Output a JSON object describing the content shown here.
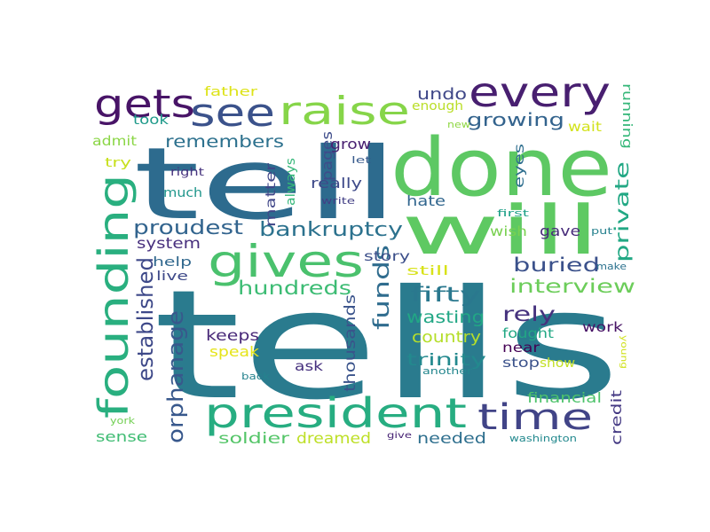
{
  "words": [
    {
      "text": "tells",
      "color": "#2a7b8e"
    },
    {
      "text": "tell",
      "color": "#2d6b8e"
    },
    {
      "text": "done",
      "color": "#5dc863"
    },
    {
      "text": "will",
      "color": "#5ec962"
    },
    {
      "text": "president",
      "color": "#27ad81"
    },
    {
      "text": "founding",
      "color": "#29af7f"
    },
    {
      "text": "gives",
      "color": "#4ac16d"
    },
    {
      "text": "raise",
      "color": "#86d549"
    },
    {
      "text": "every",
      "color": "#481f70"
    },
    {
      "text": "see",
      "color": "#3b528b"
    },
    {
      "text": "gets",
      "color": "#481467"
    },
    {
      "text": "time",
      "color": "#414487"
    },
    {
      "text": "orphanage",
      "color": "#38588c"
    },
    {
      "text": "established",
      "color": "#3e4989"
    },
    {
      "text": "bankruptcy",
      "color": "#2c728e"
    },
    {
      "text": "proudest",
      "color": "#32648e"
    },
    {
      "text": "hundreds",
      "color": "#3dbc74"
    },
    {
      "text": "interview",
      "color": "#6ccd5a"
    },
    {
      "text": "buried",
      "color": "#3b518b"
    },
    {
      "text": "growing",
      "color": "#33638d"
    },
    {
      "text": "private",
      "color": "#22a884"
    },
    {
      "text": "fifty",
      "color": "#2a788e"
    },
    {
      "text": "funds",
      "color": "#2f6c8e"
    },
    {
      "text": "rely",
      "color": "#46327e"
    },
    {
      "text": "remembers",
      "color": "#2d718e"
    },
    {
      "text": "undo",
      "color": "#3f4788"
    },
    {
      "text": "thousands",
      "color": "#3a538b"
    },
    {
      "text": "trinity",
      "color": "#23898e"
    },
    {
      "text": "wasting",
      "color": "#22a785"
    },
    {
      "text": "country",
      "color": "#b5de2b"
    },
    {
      "text": "dreamed",
      "color": "#bddf26"
    },
    {
      "text": "soldier",
      "color": "#54c568"
    },
    {
      "text": "needed",
      "color": "#2e6f8e"
    },
    {
      "text": "sense",
      "color": "#3fbc73"
    },
    {
      "text": "system",
      "color": "#472f7d"
    },
    {
      "text": "keeps",
      "color": "#482878"
    },
    {
      "text": "speak",
      "color": "#e5e419"
    },
    {
      "text": "credit",
      "color": "#443983"
    },
    {
      "text": "financial",
      "color": "#4ec36b"
    },
    {
      "text": "matter",
      "color": "#404688"
    },
    {
      "text": "pages",
      "color": "#3e4c8a"
    },
    {
      "text": "really",
      "color": "#3e4a89"
    },
    {
      "text": "grow",
      "color": "#482071"
    },
    {
      "text": "hate",
      "color": "#31668e"
    },
    {
      "text": "story",
      "color": "#3c4f8a"
    },
    {
      "text": "gave",
      "color": "#472c7a"
    },
    {
      "text": "wish",
      "color": "#7ad151"
    },
    {
      "text": "near",
      "color": "#440154"
    },
    {
      "text": "fought",
      "color": "#22a884"
    },
    {
      "text": "work",
      "color": "#471365"
    },
    {
      "text": "stop",
      "color": "#3b528b"
    },
    {
      "text": "show",
      "color": "#c2df23"
    },
    {
      "text": "ask",
      "color": "#46307e"
    },
    {
      "text": "running",
      "color": "#35b779"
    },
    {
      "text": "wait",
      "color": "#d2e21b"
    },
    {
      "text": "eyes",
      "color": "#2e6e8e"
    },
    {
      "text": "took",
      "color": "#1f9a8a"
    },
    {
      "text": "admit",
      "color": "#8bd646"
    },
    {
      "text": "try",
      "color": "#c8e020"
    },
    {
      "text": "father",
      "color": "#dde318"
    },
    {
      "text": "enough",
      "color": "#bade28"
    },
    {
      "text": "always",
      "color": "#35b779"
    },
    {
      "text": "much",
      "color": "#1f968b"
    },
    {
      "text": "help",
      "color": "#31688e"
    },
    {
      "text": "live",
      "color": "#3e4989"
    },
    {
      "text": "still",
      "color": "#d8e219"
    },
    {
      "text": "right",
      "color": "#46337e"
    },
    {
      "text": "write",
      "color": "#423f85"
    },
    {
      "text": "let",
      "color": "#375a8c"
    },
    {
      "text": "new",
      "color": "#8fd744"
    },
    {
      "text": "first",
      "color": "#1fa088"
    },
    {
      "text": "put",
      "color": "#26818e"
    },
    {
      "text": "make",
      "color": "#2c728e"
    },
    {
      "text": "back",
      "color": "#25838e"
    },
    {
      "text": "another",
      "color": "#24878e"
    },
    {
      "text": "give",
      "color": "#482475"
    },
    {
      "text": "york",
      "color": "#74d055"
    },
    {
      "text": "washington",
      "color": "#23898e"
    },
    {
      "text": "young",
      "color": "#d0e11c"
    }
  ]
}
